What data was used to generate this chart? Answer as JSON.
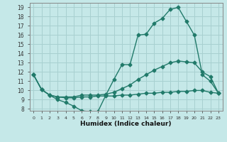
{
  "xlabel": "Humidex (Indice chaleur)",
  "bg_color": "#c5e8e8",
  "grid_color": "#a8d0d0",
  "line_color": "#217a6a",
  "xlim": [
    -0.5,
    23.5
  ],
  "ylim": [
    7.8,
    19.5
  ],
  "xticks": [
    0,
    1,
    2,
    3,
    4,
    5,
    6,
    7,
    8,
    9,
    10,
    11,
    12,
    13,
    14,
    15,
    16,
    17,
    18,
    19,
    20,
    21,
    22,
    23
  ],
  "yticks": [
    8,
    9,
    10,
    11,
    12,
    13,
    14,
    15,
    16,
    17,
    18,
    19
  ],
  "line1_x": [
    0,
    1,
    2,
    3,
    4,
    5,
    6,
    7,
    8,
    9,
    10,
    11,
    12,
    13,
    14,
    15,
    16,
    17,
    18,
    19,
    20,
    21,
    22,
    23
  ],
  "line1_y": [
    11.7,
    10.1,
    9.5,
    9.0,
    8.7,
    8.3,
    7.8,
    7.7,
    7.7,
    9.5,
    11.2,
    12.8,
    12.8,
    16.0,
    16.1,
    17.3,
    17.8,
    18.8,
    19.0,
    17.5,
    16.0,
    11.7,
    11.0,
    9.7
  ],
  "line2_x": [
    0,
    1,
    2,
    3,
    4,
    5,
    6,
    7,
    8,
    9,
    10,
    11,
    12,
    13,
    14,
    15,
    16,
    17,
    18,
    19,
    20,
    21,
    22,
    23
  ],
  "line2_y": [
    11.7,
    10.1,
    9.5,
    9.3,
    9.2,
    9.2,
    9.3,
    9.3,
    9.4,
    9.4,
    9.4,
    9.5,
    9.5,
    9.6,
    9.7,
    9.7,
    9.8,
    9.8,
    9.9,
    9.9,
    10.0,
    10.0,
    9.8,
    9.7
  ],
  "line3_x": [
    0,
    1,
    2,
    3,
    4,
    5,
    6,
    7,
    8,
    9,
    10,
    11,
    12,
    13,
    14,
    15,
    16,
    17,
    18,
    19,
    20,
    21,
    22,
    23
  ],
  "line3_y": [
    11.7,
    10.1,
    9.5,
    9.3,
    9.3,
    9.3,
    9.5,
    9.5,
    9.5,
    9.6,
    9.8,
    10.2,
    10.6,
    11.2,
    11.7,
    12.2,
    12.6,
    13.0,
    13.2,
    13.1,
    13.0,
    12.0,
    11.5,
    9.7
  ]
}
